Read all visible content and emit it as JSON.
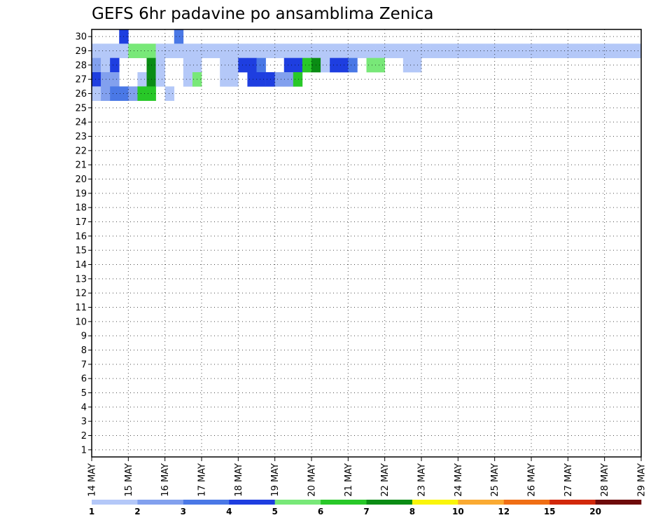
{
  "chart_data": {
    "type": "heatmap",
    "title": "GEFS 6hr padavine po ansamblima Zenica",
    "xlabel": "",
    "ylabel": "",
    "x_tick_labels": [
      "14 MAY",
      "15 MAY",
      "16 MAY",
      "17 MAY",
      "18 MAY",
      "19 MAY",
      "20 MAY",
      "21 MAY",
      "22 MAY",
      "23 MAY",
      "24 MAY",
      "25 MAY",
      "26 MAY",
      "27 MAY",
      "28 MAY",
      "29 MAY"
    ],
    "y_tick_labels": [
      "1",
      "2",
      "3",
      "4",
      "5",
      "6",
      "7",
      "8",
      "9",
      "10",
      "11",
      "12",
      "13",
      "14",
      "15",
      "16",
      "17",
      "18",
      "19",
      "20",
      "21",
      "22",
      "23",
      "24",
      "25",
      "26",
      "27",
      "28",
      "29",
      "30"
    ],
    "xlim": [
      "14 MAY 00Z",
      "29 MAY 00Z"
    ],
    "ylim": [
      0.5,
      30.5
    ],
    "time_step_hours": 6,
    "grid": "dotted",
    "colorbar": {
      "position": "bottom",
      "levels": [
        "1",
        "2",
        "3",
        "4",
        "5",
        "6",
        "7",
        "8",
        "10",
        "12",
        "15",
        "20"
      ],
      "colors": [
        "#b4c8f8",
        "#82a0ee",
        "#4a78e6",
        "#1e3ee0",
        "#78e878",
        "#28c828",
        "#0a8c14",
        "#faf50a",
        "#faaa32",
        "#f06e14",
        "#d2280a",
        "#6e0a0a"
      ]
    },
    "members": [
      {
        "member": 30,
        "values": [
          0,
          0,
          0,
          4,
          0,
          0,
          0,
          0,
          0,
          3,
          0,
          0,
          0,
          0,
          0,
          0,
          0,
          0,
          0,
          0,
          0,
          0,
          0,
          0,
          0,
          0,
          0,
          0,
          0,
          0,
          0,
          0,
          0,
          0,
          0,
          0,
          0,
          0,
          0,
          0,
          0,
          0,
          0,
          0,
          0,
          0,
          0,
          0,
          0,
          0,
          0,
          0,
          0,
          0,
          0,
          0,
          0,
          0,
          0,
          0
        ]
      },
      {
        "member": 29,
        "values": [
          1,
          1,
          1,
          1,
          5,
          5,
          5,
          1,
          1,
          1,
          1,
          1,
          1,
          1,
          1,
          1,
          1,
          1,
          1,
          1,
          1,
          1,
          1,
          1,
          1,
          1,
          1,
          1,
          1,
          1,
          1,
          1,
          1,
          1,
          1,
          1,
          1,
          1,
          1,
          1,
          1,
          1,
          1,
          1,
          1,
          1,
          1,
          1,
          1,
          1,
          1,
          1,
          1,
          1,
          1,
          1,
          1,
          1,
          1,
          1
        ]
      },
      {
        "member": 28,
        "values": [
          2,
          1,
          4,
          0,
          0,
          0,
          7,
          1,
          0,
          0,
          1,
          1,
          0,
          0,
          1,
          1,
          4,
          4,
          3,
          0,
          0,
          4,
          4,
          6,
          7,
          1,
          4,
          4,
          3,
          0,
          5,
          5,
          0,
          0,
          1,
          1,
          0,
          0,
          0,
          0,
          0,
          0,
          0,
          0,
          0,
          0,
          0,
          0,
          0,
          0,
          0,
          0,
          0,
          0,
          0,
          0,
          0,
          0,
          0,
          0
        ]
      },
      {
        "member": 27,
        "values": [
          4,
          2,
          2,
          0,
          0,
          1,
          7,
          1,
          0,
          0,
          1,
          5,
          0,
          0,
          1,
          1,
          0,
          4,
          4,
          4,
          2,
          2,
          6,
          0,
          0,
          0,
          0,
          0,
          0,
          0,
          0,
          0,
          0,
          0,
          0,
          0,
          0,
          0,
          0,
          0,
          0,
          0,
          0,
          0,
          0,
          0,
          0,
          0,
          0,
          0,
          0,
          0,
          0,
          0,
          0,
          0,
          0,
          0,
          0,
          0
        ]
      },
      {
        "member": 26,
        "values": [
          1,
          2,
          3,
          3,
          2,
          6,
          6,
          0,
          1,
          0,
          0,
          0,
          0,
          0,
          0,
          0,
          0,
          0,
          0,
          0,
          0,
          0,
          0,
          0,
          0,
          0,
          0,
          0,
          0,
          0,
          0,
          0,
          0,
          0,
          0,
          0,
          0,
          0,
          0,
          0,
          0,
          0,
          0,
          0,
          0,
          0,
          0,
          0,
          0,
          0,
          0,
          0,
          0,
          0,
          0,
          0,
          0,
          0,
          0,
          0
        ]
      }
    ]
  }
}
